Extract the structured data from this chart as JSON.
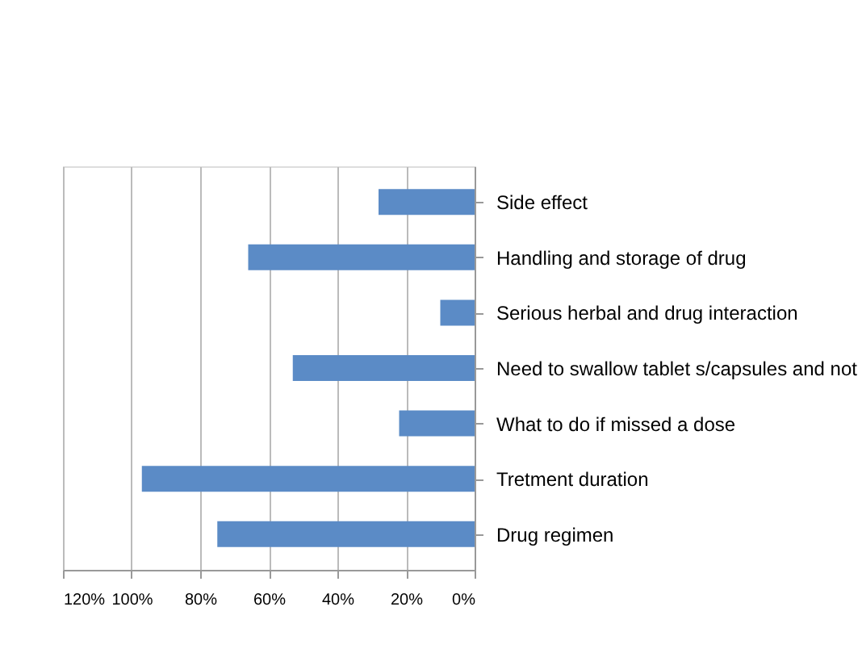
{
  "chart_data": {
    "type": "bar",
    "orientation": "horizontal",
    "categories": [
      "Side effect",
      "Handling and storage of drug",
      "Serious herbal and drug interaction",
      "Need to swallow tablet s/capsules and not",
      "What to do if missed a dose",
      "Tretment duration",
      "Drug regimen"
    ],
    "values": [
      28,
      66,
      10,
      53,
      22,
      97,
      75
    ],
    "color": "#5b8bc6",
    "xlim": [
      120,
      0
    ],
    "xticks": [
      {
        "value": 120,
        "label": "120%"
      },
      {
        "value": 100,
        "label": "100%"
      },
      {
        "value": 80,
        "label": "80%"
      },
      {
        "value": 60,
        "label": "60%"
      },
      {
        "value": 40,
        "label": "40%"
      },
      {
        "value": 20,
        "label": "20%"
      },
      {
        "value": 0,
        "label": "0%"
      }
    ],
    "grid": "x"
  }
}
